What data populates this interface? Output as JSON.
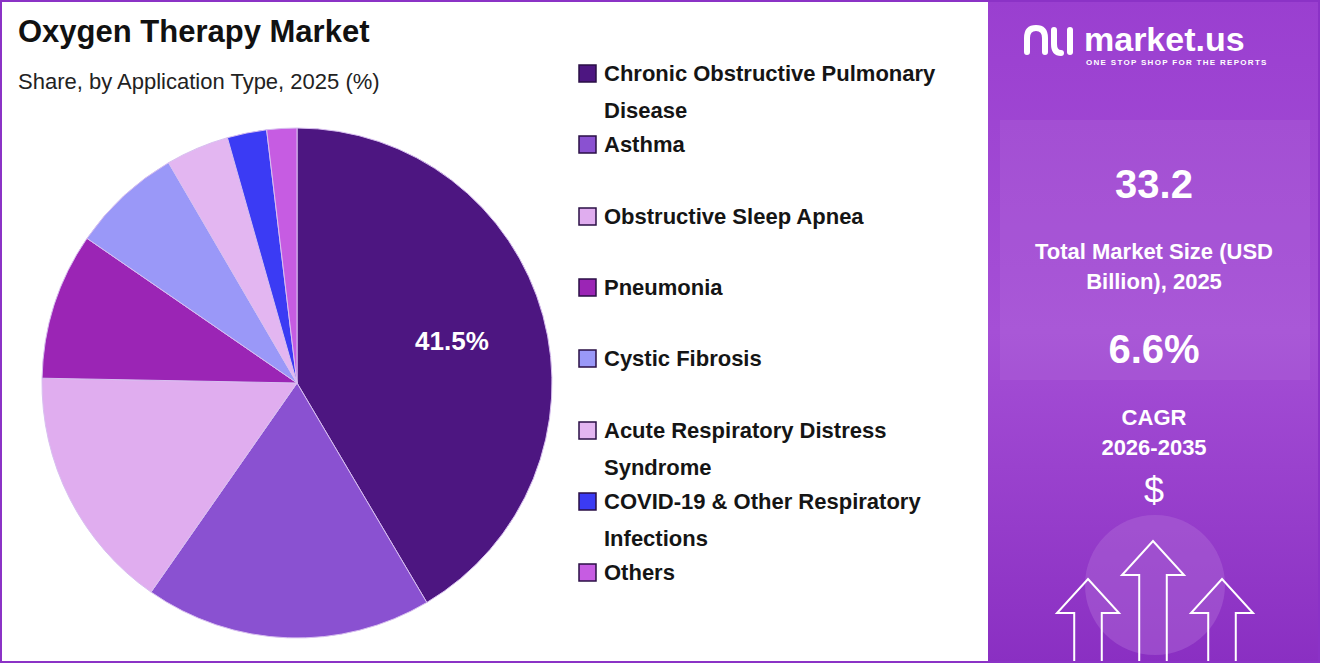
{
  "chart_data": {
    "type": "pie",
    "title": "Oxygen Therapy Market",
    "subtitle": "Share, by Application Type, 2025 (%)",
    "categories": [
      "Chronic Obstructive Pulmonary Disease",
      "Asthma",
      "Obstructive Sleep Apnea",
      "Pneumonia",
      "Cystic Fibrosis",
      "Acute Respiratory Distress Syndrome",
      "COVID-19 & Other Respiratory Infections",
      "Others"
    ],
    "values": [
      41.5,
      18.2,
      15.6,
      9.3,
      7.0,
      4.0,
      2.5,
      1.9
    ],
    "value_labels": [
      "41.5%",
      null,
      null,
      null,
      null,
      null,
      null,
      null
    ],
    "colors": [
      "#4d1681",
      "#8a51d1",
      "#e0adef",
      "#9b25b5",
      "#9a98f8",
      "#e3b6f1",
      "#3b3bf4",
      "#c65ce2"
    ],
    "data_labels": true,
    "legend": "right"
  },
  "panel": {
    "brand": "market.us",
    "tagline": "ONE STOP SHOP FOR THE REPORTS",
    "market_size": "33.2",
    "market_size_label": "Total Market Size (USD Billion), 2025",
    "cagr": "6.6%",
    "cagr_label": "CAGR 2026-2035",
    "currency": "$"
  }
}
